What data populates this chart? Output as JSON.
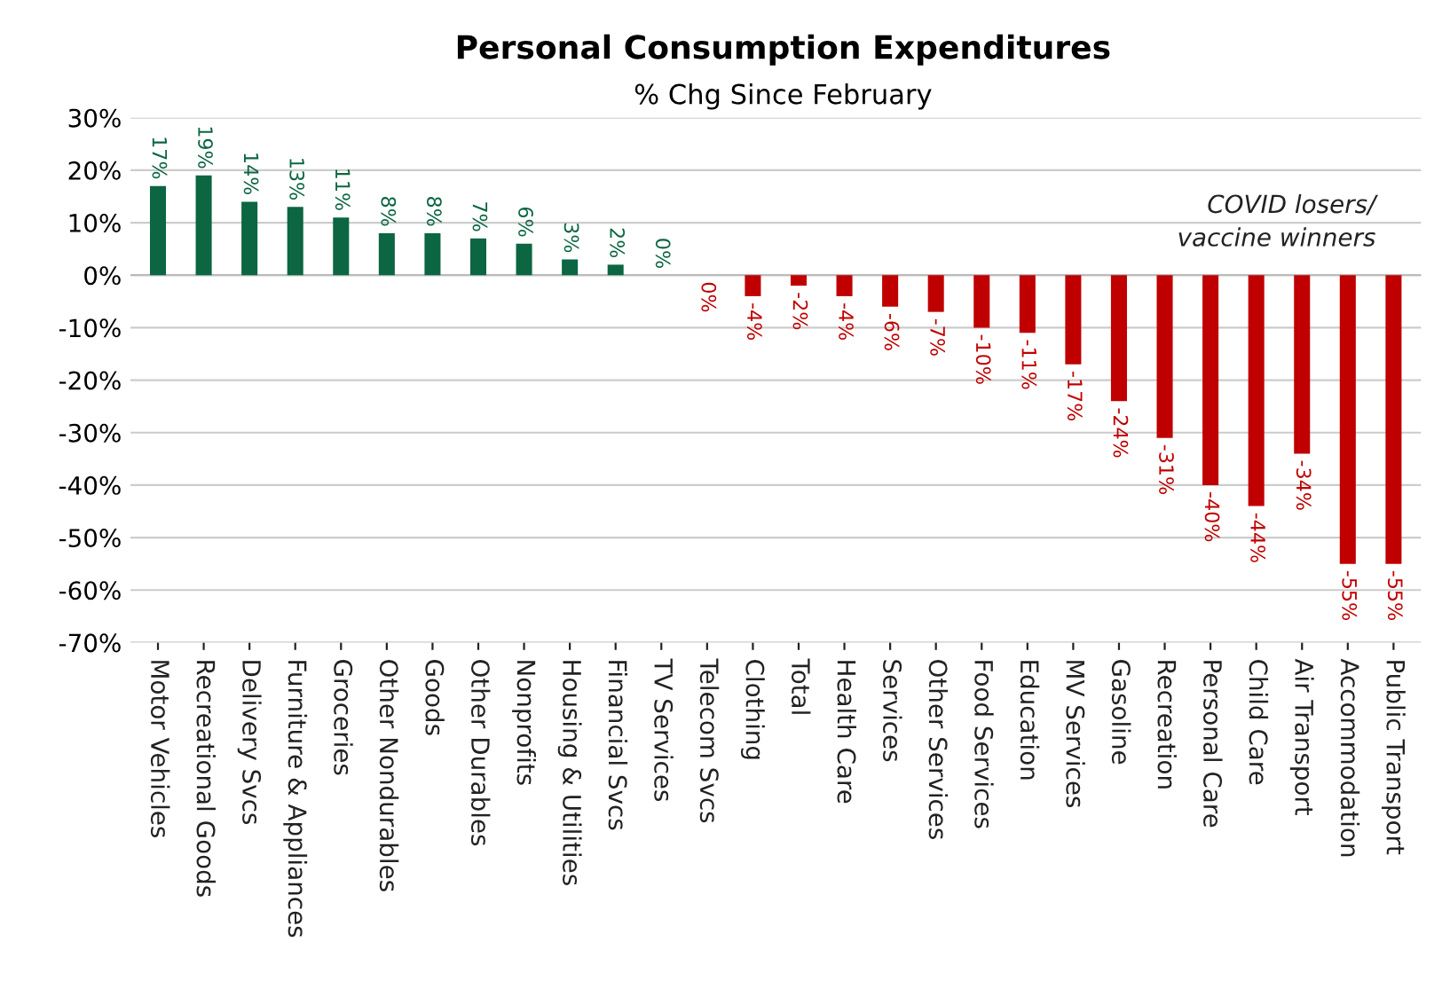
{
  "chart_data": {
    "type": "bar",
    "title": "Personal Consumption Expenditures",
    "subtitle": "% Chg Since February",
    "categories": [
      "Motor Vehicles",
      "Recreational Goods",
      "Delivery Svcs",
      "Furniture & Appliances",
      "Groceries",
      "Other Nondurables",
      "Goods",
      "Other Durables",
      "Nonprofits",
      "Housing & Utilities",
      "Financial Svcs",
      "TV Services",
      "Telecom Svcs",
      "Clothing",
      "Total",
      "Health Care",
      "Services",
      "Other Services",
      "Food Services",
      "Education",
      "MV Services",
      "Gasoline",
      "Recreation",
      "Personal Care",
      "Child Care",
      "Air Transport",
      "Accommodation",
      "Public Transport"
    ],
    "values": [
      17,
      19,
      14,
      13,
      11,
      8,
      8,
      7,
      6,
      3,
      2,
      0,
      0,
      -4,
      -2,
      -4,
      -6,
      -7,
      -10,
      -11,
      -17,
      -24,
      -31,
      -40,
      -44,
      -34,
      -55,
      -55
    ],
    "colors": [
      "#0b6641",
      "#0b6641",
      "#0b6641",
      "#0b6641",
      "#0b6641",
      "#0b6641",
      "#0b6641",
      "#0b6641",
      "#0b6641",
      "#0b6641",
      "#0b6641",
      "#0b6641",
      "#c00000",
      "#c00000",
      "#c00000",
      "#c00000",
      "#c00000",
      "#c00000",
      "#c00000",
      "#c00000",
      "#c00000",
      "#c00000",
      "#c00000",
      "#c00000",
      "#c00000",
      "#c00000",
      "#c00000",
      "#c00000"
    ],
    "value_labels": [
      "17%",
      "19%",
      "14%",
      "13%",
      "11%",
      "8%",
      "8%",
      "7%",
      "6%",
      "3%",
      "2%",
      "0%",
      "0%",
      "-4%",
      "-2%",
      "-4%",
      "-6%",
      "-7%",
      "-10%",
      "-11%",
      "-17%",
      "-24%",
      "-31%",
      "-40%",
      "-44%",
      "-34%",
      "-55%",
      "-55%"
    ],
    "ylim": [
      -70,
      30
    ],
    "yticks": [
      {
        "value": 30,
        "label": "30%"
      },
      {
        "value": 20,
        "label": "20%"
      },
      {
        "value": 10,
        "label": "10%"
      },
      {
        "value": 0,
        "label": "0%"
      },
      {
        "value": -10,
        "label": "-10%"
      },
      {
        "value": -20,
        "label": "-20%"
      },
      {
        "value": -30,
        "label": "-30%"
      },
      {
        "value": -40,
        "label": "-40%"
      },
      {
        "value": -50,
        "label": "-50%"
      },
      {
        "value": -60,
        "label": "-60%"
      },
      {
        "value": -70,
        "label": "-70%"
      }
    ],
    "grid": "y",
    "legend": false,
    "annotations": [
      "COVID losers/\nvaccine winners"
    ]
  }
}
